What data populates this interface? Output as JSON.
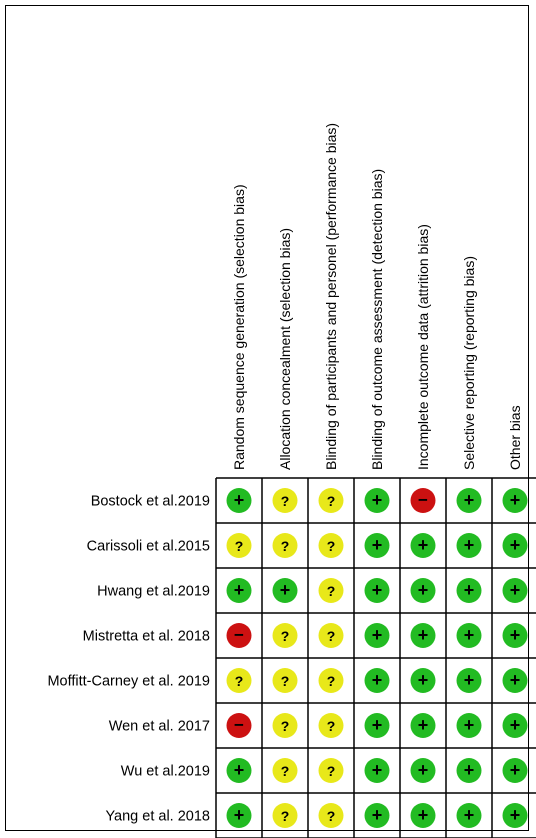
{
  "chart_data": {
    "type": "table",
    "columns": [
      "Random sequence generation (selection bias)",
      "Allocation concealment (selection bias)",
      "Blinding of participants and personel (performance bias)",
      "Blinding of outcome assessment (detection bias)",
      "Incomplete outcome data (attrition bias)",
      "Selective reporting (reporting bias)",
      "Other bias"
    ],
    "rows": [
      "Bostock et al.2019",
      "Carissoli et al.2015",
      "Hwang et al.2019",
      "Mistretta et al. 2018",
      "Moffitt-Carney et al. 2019",
      "Wen et al. 2017",
      "Wu et al.2019",
      "Yang et al. 2018"
    ],
    "values": [
      [
        "low",
        "unclear",
        "unclear",
        "low",
        "high",
        "low",
        "low"
      ],
      [
        "unclear",
        "unclear",
        "unclear",
        "low",
        "low",
        "low",
        "low"
      ],
      [
        "low",
        "low",
        "unclear",
        "low",
        "low",
        "low",
        "low"
      ],
      [
        "high",
        "unclear",
        "unclear",
        "low",
        "low",
        "low",
        "low"
      ],
      [
        "unclear",
        "unclear",
        "unclear",
        "low",
        "low",
        "low",
        "low"
      ],
      [
        "high",
        "unclear",
        "unclear",
        "low",
        "low",
        "low",
        "low"
      ],
      [
        "low",
        "unclear",
        "unclear",
        "low",
        "low",
        "low",
        "low"
      ],
      [
        "low",
        "unclear",
        "unclear",
        "low",
        "low",
        "low",
        "low"
      ]
    ],
    "symbols": {
      "low": "+",
      "unclear": "?",
      "high": "−"
    },
    "colors": {
      "low": "#22bb22",
      "unclear": "#e8e81a",
      "high": "#cc1111"
    }
  }
}
